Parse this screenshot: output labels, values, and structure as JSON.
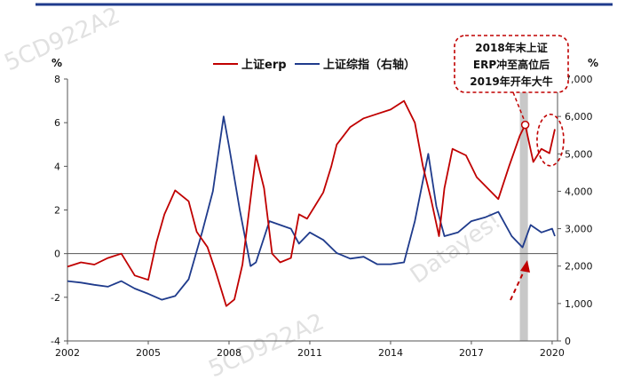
{
  "chart_data": {
    "type": "line",
    "x": [
      2002,
      2003,
      2004,
      2005,
      2006,
      2007,
      2008,
      2009,
      2010,
      2011,
      2012,
      2013,
      2014,
      2015,
      2016,
      2017,
      2018,
      2019,
      2020
    ],
    "series": [
      {
        "name": "上证erp",
        "axis": "left",
        "color": "#c00000",
        "points": [
          [
            2002.0,
            -0.6
          ],
          [
            2002.5,
            -0.4
          ],
          [
            2003.0,
            -0.5
          ],
          [
            2003.5,
            -0.2
          ],
          [
            2004.0,
            0.0
          ],
          [
            2004.5,
            -1.0
          ],
          [
            2005.0,
            -1.2
          ],
          [
            2005.3,
            0.5
          ],
          [
            2005.6,
            1.8
          ],
          [
            2006.0,
            2.9
          ],
          [
            2006.5,
            2.4
          ],
          [
            2006.8,
            1.0
          ],
          [
            2007.2,
            0.3
          ],
          [
            2007.5,
            -0.8
          ],
          [
            2007.9,
            -2.4
          ],
          [
            2008.2,
            -2.1
          ],
          [
            2008.5,
            -0.5
          ],
          [
            2008.8,
            2.5
          ],
          [
            2009.0,
            4.5
          ],
          [
            2009.3,
            3.0
          ],
          [
            2009.6,
            0.0
          ],
          [
            2009.9,
            -0.4
          ],
          [
            2010.3,
            -0.2
          ],
          [
            2010.6,
            1.8
          ],
          [
            2010.9,
            1.6
          ],
          [
            2011.2,
            2.2
          ],
          [
            2011.5,
            2.8
          ],
          [
            2011.8,
            4.0
          ],
          [
            2012.0,
            5.0
          ],
          [
            2012.5,
            5.8
          ],
          [
            2013.0,
            6.2
          ],
          [
            2013.5,
            6.4
          ],
          [
            2014.0,
            6.6
          ],
          [
            2014.5,
            7.0
          ],
          [
            2014.9,
            6.0
          ],
          [
            2015.2,
            4.0
          ],
          [
            2015.5,
            2.5
          ],
          [
            2015.8,
            0.8
          ],
          [
            2016.0,
            3.0
          ],
          [
            2016.3,
            4.8
          ],
          [
            2016.8,
            4.5
          ],
          [
            2017.2,
            3.5
          ],
          [
            2017.6,
            3.0
          ],
          [
            2018.0,
            2.5
          ],
          [
            2018.4,
            4.0
          ],
          [
            2018.8,
            5.4
          ],
          [
            2019.0,
            5.9
          ],
          [
            2019.3,
            4.2
          ],
          [
            2019.6,
            4.8
          ],
          [
            2019.9,
            4.6
          ],
          [
            2020.1,
            5.7
          ]
        ]
      },
      {
        "name": "上证综指（右轴）",
        "axis": "right",
        "color": "#1f3b8c",
        "points": [
          [
            2002.0,
            1600
          ],
          [
            2002.5,
            1560
          ],
          [
            2003.0,
            1500
          ],
          [
            2003.5,
            1450
          ],
          [
            2004.0,
            1600
          ],
          [
            2004.5,
            1400
          ],
          [
            2005.0,
            1260
          ],
          [
            2005.5,
            1100
          ],
          [
            2006.0,
            1200
          ],
          [
            2006.5,
            1650
          ],
          [
            2007.0,
            2900
          ],
          [
            2007.4,
            4000
          ],
          [
            2007.8,
            6000
          ],
          [
            2008.0,
            5200
          ],
          [
            2008.4,
            3500
          ],
          [
            2008.8,
            2000
          ],
          [
            2009.0,
            2100
          ],
          [
            2009.5,
            3200
          ],
          [
            2009.9,
            3100
          ],
          [
            2010.3,
            3000
          ],
          [
            2010.6,
            2600
          ],
          [
            2011.0,
            2900
          ],
          [
            2011.5,
            2700
          ],
          [
            2012.0,
            2350
          ],
          [
            2012.5,
            2200
          ],
          [
            2013.0,
            2250
          ],
          [
            2013.5,
            2050
          ],
          [
            2014.0,
            2050
          ],
          [
            2014.5,
            2100
          ],
          [
            2014.9,
            3200
          ],
          [
            2015.4,
            5000
          ],
          [
            2015.7,
            3600
          ],
          [
            2016.0,
            2800
          ],
          [
            2016.5,
            2900
          ],
          [
            2017.0,
            3200
          ],
          [
            2017.5,
            3300
          ],
          [
            2018.0,
            3450
          ],
          [
            2018.5,
            2800
          ],
          [
            2018.9,
            2500
          ],
          [
            2019.2,
            3100
          ],
          [
            2019.6,
            2900
          ],
          [
            2020.0,
            3000
          ],
          [
            2020.1,
            2800
          ]
        ]
      }
    ],
    "xticks": [
      "2002",
      "2005",
      "2008",
      "2011",
      "2014",
      "2017",
      "2020"
    ],
    "xlim": [
      2002,
      2020.2
    ],
    "ylim": [
      -4,
      8
    ],
    "yticks": [
      "-4",
      "-2",
      "0",
      "2",
      "4",
      "6",
      "8"
    ],
    "y2lim": [
      0,
      7000
    ],
    "y2ticks": [
      "0",
      "1,000",
      "2,000",
      "3,000",
      "4,000",
      "5,000",
      "6,000",
      "7,000"
    ],
    "ylabel": "%",
    "y2label": "%",
    "legend_position": "top-center",
    "highlight_band": [
      2018.8,
      2019.1
    ],
    "highlight_color": "#c8c8c8",
    "annotation": {
      "lines": [
        "2018年末上证",
        "ERP冲至高位后",
        "2019年开年大牛"
      ],
      "point": [
        2019.0,
        5.9
      ]
    },
    "circled_region": [
      2020.0,
      5.0
    ]
  },
  "watermarks": [
    "5CD922A2",
    "5CD922A2",
    "Datayes!"
  ],
  "colors": {
    "top_rule": "#1f3b8c",
    "grid": "#555555"
  }
}
